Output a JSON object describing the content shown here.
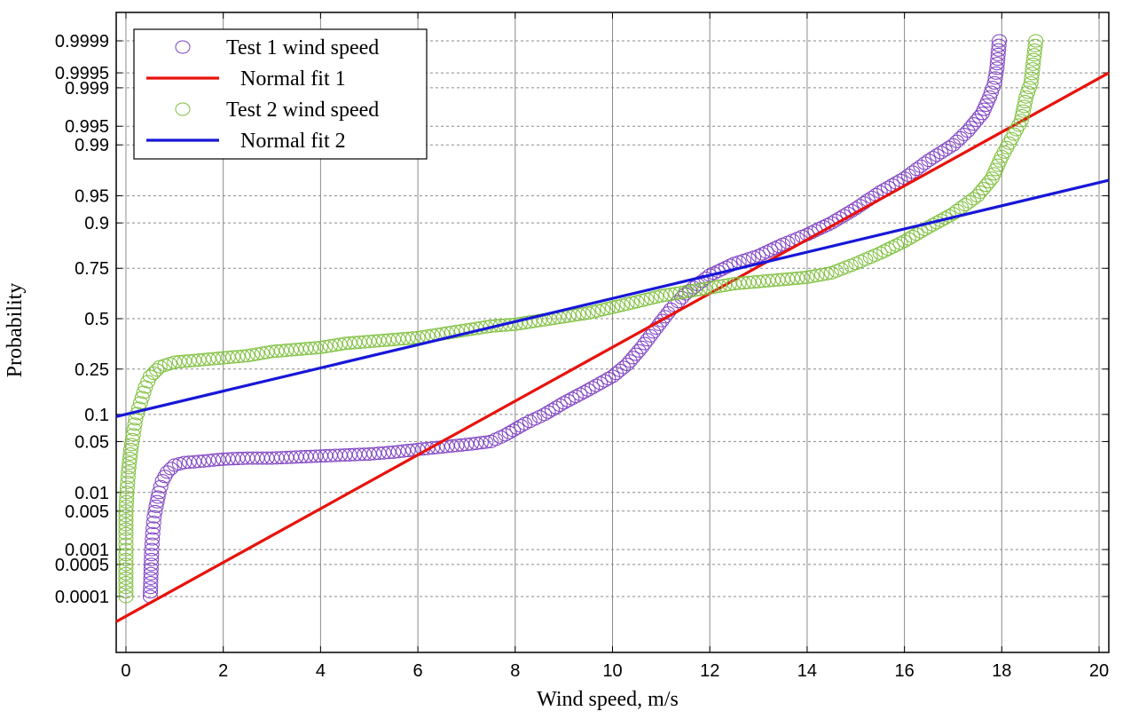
{
  "chart_data": {
    "type": "scatter",
    "title": "",
    "xlabel": "Wind speed, m/s",
    "ylabel": "Probability",
    "xlim": [
      -0.2,
      20.2
    ],
    "x_ticks": [
      0,
      2,
      4,
      6,
      8,
      10,
      12,
      14,
      16,
      18,
      20
    ],
    "y_scale": "normal-probability",
    "y_ticks": [
      0.0001,
      0.0005,
      0.001,
      0.005,
      0.01,
      0.05,
      0.1,
      0.25,
      0.5,
      0.75,
      0.9,
      0.95,
      0.99,
      0.995,
      0.999,
      0.9995,
      0.9999
    ],
    "y_tick_labels": [
      "0.0001",
      "0.0005",
      "0.001",
      "0.005",
      "0.01",
      "0.05",
      "0.1",
      "0.25",
      "0.5",
      "0.75",
      "0.9",
      "0.95",
      "0.99",
      "0.995",
      "0.999",
      "0.9995",
      "0.9999"
    ],
    "grid": true,
    "legend_position": "top-left",
    "series": [
      {
        "name": "Test 1 wind speed",
        "kind": "scatter",
        "marker": "open-circle",
        "color": "#7d3fc2",
        "points": [
          [
            0.5,
            0.0001
          ],
          [
            0.52,
            0.0005
          ],
          [
            0.53,
            0.001
          ],
          [
            0.55,
            0.002
          ],
          [
            0.58,
            0.004
          ],
          [
            0.62,
            0.006
          ],
          [
            0.68,
            0.01
          ],
          [
            0.75,
            0.015
          ],
          [
            0.85,
            0.02
          ],
          [
            1.0,
            0.025
          ],
          [
            1.2,
            0.027
          ],
          [
            1.5,
            0.028
          ],
          [
            2.0,
            0.03
          ],
          [
            2.5,
            0.031
          ],
          [
            3.0,
            0.031
          ],
          [
            3.5,
            0.032
          ],
          [
            4.0,
            0.033
          ],
          [
            4.5,
            0.034
          ],
          [
            5.0,
            0.035
          ],
          [
            5.5,
            0.037
          ],
          [
            6.0,
            0.04
          ],
          [
            6.5,
            0.043
          ],
          [
            7.0,
            0.046
          ],
          [
            7.5,
            0.05
          ],
          [
            7.8,
            0.06
          ],
          [
            8.2,
            0.08
          ],
          [
            8.6,
            0.1
          ],
          [
            9.0,
            0.13
          ],
          [
            9.5,
            0.17
          ],
          [
            10.0,
            0.22
          ],
          [
            10.3,
            0.27
          ],
          [
            10.6,
            0.35
          ],
          [
            10.9,
            0.45
          ],
          [
            11.2,
            0.55
          ],
          [
            11.5,
            0.63
          ],
          [
            12.0,
            0.72
          ],
          [
            12.5,
            0.77
          ],
          [
            13.0,
            0.8
          ],
          [
            13.5,
            0.84
          ],
          [
            14.0,
            0.87
          ],
          [
            14.5,
            0.9
          ],
          [
            15.0,
            0.93
          ],
          [
            15.5,
            0.955
          ],
          [
            16.0,
            0.97
          ],
          [
            16.5,
            0.983
          ],
          [
            17.0,
            0.99
          ],
          [
            17.3,
            0.994
          ],
          [
            17.6,
            0.997
          ],
          [
            17.75,
            0.9985
          ],
          [
            17.85,
            0.9992
          ],
          [
            17.9,
            0.9996
          ],
          [
            17.95,
            0.9999
          ]
        ]
      },
      {
        "name": "Normal fit 1",
        "kind": "line",
        "color": "#e8120c",
        "points": [
          [
            -0.2,
            2.5e-05
          ],
          [
            20.2,
            0.9995
          ]
        ]
      },
      {
        "name": "Test 2 wind speed",
        "kind": "scatter",
        "marker": "open-circle",
        "color": "#7cbf3a",
        "points": [
          [
            0.0,
            0.0001
          ],
          [
            0.0,
            0.0005
          ],
          [
            0.0,
            0.001
          ],
          [
            0.0,
            0.002
          ],
          [
            0.0,
            0.005
          ],
          [
            0.02,
            0.01
          ],
          [
            0.05,
            0.02
          ],
          [
            0.1,
            0.04
          ],
          [
            0.15,
            0.06
          ],
          [
            0.2,
            0.09
          ],
          [
            0.3,
            0.13
          ],
          [
            0.4,
            0.18
          ],
          [
            0.5,
            0.22
          ],
          [
            0.7,
            0.26
          ],
          [
            1.0,
            0.28
          ],
          [
            1.5,
            0.29
          ],
          [
            2.0,
            0.3
          ],
          [
            2.5,
            0.31
          ],
          [
            3.0,
            0.33
          ],
          [
            3.5,
            0.34
          ],
          [
            4.0,
            0.35
          ],
          [
            4.5,
            0.37
          ],
          [
            5.0,
            0.38
          ],
          [
            5.5,
            0.39
          ],
          [
            6.0,
            0.4
          ],
          [
            6.5,
            0.42
          ],
          [
            7.0,
            0.44
          ],
          [
            7.5,
            0.46
          ],
          [
            8.0,
            0.47
          ],
          [
            8.5,
            0.49
          ],
          [
            9.0,
            0.51
          ],
          [
            9.5,
            0.53
          ],
          [
            10.0,
            0.56
          ],
          [
            10.5,
            0.59
          ],
          [
            11.0,
            0.62
          ],
          [
            11.5,
            0.64
          ],
          [
            12.0,
            0.66
          ],
          [
            12.5,
            0.68
          ],
          [
            13.0,
            0.69
          ],
          [
            13.5,
            0.7
          ],
          [
            14.0,
            0.71
          ],
          [
            14.5,
            0.73
          ],
          [
            15.0,
            0.77
          ],
          [
            15.5,
            0.81
          ],
          [
            16.0,
            0.85
          ],
          [
            16.5,
            0.89
          ],
          [
            17.0,
            0.92
          ],
          [
            17.5,
            0.95
          ],
          [
            17.8,
            0.97
          ],
          [
            18.0,
            0.985
          ],
          [
            18.2,
            0.992
          ],
          [
            18.4,
            0.996
          ],
          [
            18.5,
            0.9985
          ],
          [
            18.6,
            0.9992
          ],
          [
            18.7,
            0.9999
          ]
        ]
      },
      {
        "name": "Normal fit 2",
        "kind": "line",
        "color": "#1717d8",
        "points": [
          [
            -0.2,
            0.095
          ],
          [
            20.2,
            0.968
          ]
        ]
      }
    ]
  }
}
